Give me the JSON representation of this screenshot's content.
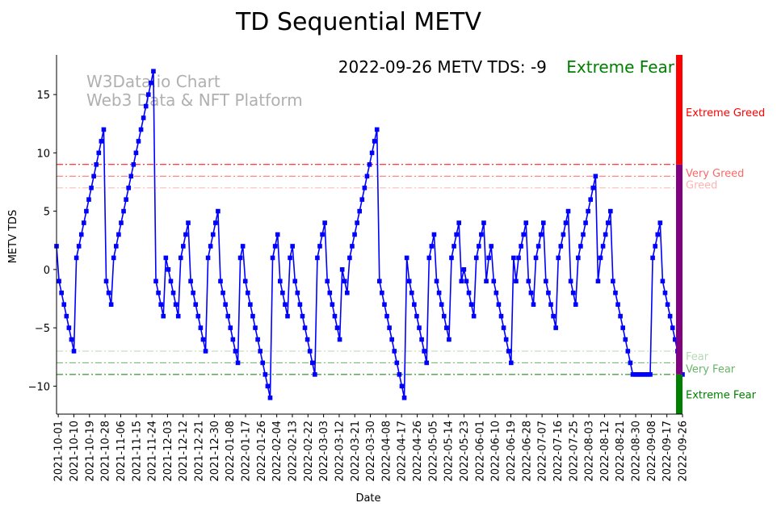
{
  "chart_data": {
    "type": "line",
    "title": "TD Sequential METV",
    "xlabel": "Date",
    "ylabel": "METV TDS",
    "ylim": [
      -12.4,
      18.4
    ],
    "yticks": [
      15,
      10,
      5,
      0,
      -5,
      -10
    ],
    "x_start": "2021-09-30",
    "x_end": "2022-09-26",
    "xticks": [
      "2021-10-01",
      "2021-10-10",
      "2021-10-19",
      "2021-10-28",
      "2021-11-06",
      "2021-11-15",
      "2021-11-24",
      "2021-12-03",
      "2021-12-12",
      "2021-12-21",
      "2021-12-30",
      "2022-01-08",
      "2022-01-17",
      "2022-01-26",
      "2022-02-04",
      "2022-02-13",
      "2022-02-22",
      "2022-03-03",
      "2022-03-12",
      "2022-03-21",
      "2022-03-30",
      "2022-04-08",
      "2022-04-17",
      "2022-04-26",
      "2022-05-05",
      "2022-05-14",
      "2022-05-23",
      "2022-06-01",
      "2022-06-10",
      "2022-06-19",
      "2022-06-28",
      "2022-07-07",
      "2022-07-16",
      "2022-07-25",
      "2022-08-03",
      "2022-08-12",
      "2022-08-21",
      "2022-08-30",
      "2022-09-08",
      "2022-09-17",
      "2022-09-26"
    ],
    "grid": false,
    "watermark": [
      "W3Data.io Chart",
      "Web3 Data & NFT Platform"
    ],
    "annotation": {
      "label": "2022-09-26 METV TDS: -9",
      "sentiment": "Extreme Fear",
      "sentiment_color": "#008000"
    },
    "series": [
      {
        "color": "#0000ff",
        "marker": "square",
        "values": [
          2,
          -1,
          -2,
          -3,
          -4,
          -5,
          -6,
          -7,
          1,
          2,
          3,
          4,
          5,
          6,
          7,
          8,
          9,
          10,
          11,
          12,
          -1,
          -2,
          -3,
          1,
          2,
          3,
          4,
          5,
          6,
          7,
          8,
          9,
          10,
          11,
          12,
          13,
          14,
          15,
          16,
          17,
          -1,
          -2,
          -3,
          -4,
          1,
          0,
          -1,
          -2,
          -3,
          -4,
          1,
          2,
          3,
          4,
          -1,
          -2,
          -3,
          -4,
          -5,
          -6,
          -7,
          1,
          2,
          3,
          4,
          5,
          -1,
          -2,
          -3,
          -4,
          -5,
          -6,
          -7,
          -8,
          1,
          2,
          -1,
          -2,
          -3,
          -4,
          -5,
          -6,
          -7,
          -8,
          -9,
          -10,
          -11,
          1,
          2,
          3,
          -1,
          -2,
          -3,
          -4,
          1,
          2,
          -1,
          -2,
          -3,
          -4,
          -5,
          -6,
          -7,
          -8,
          -9,
          1,
          2,
          3,
          4,
          -1,
          -2,
          -3,
          -4,
          -5,
          -6,
          0,
          -1,
          -2,
          1,
          2,
          3,
          4,
          5,
          6,
          7,
          8,
          9,
          10,
          11,
          12,
          -1,
          -2,
          -3,
          -4,
          -5,
          -6,
          -7,
          -8,
          -9,
          -10,
          -11,
          1,
          -1,
          -2,
          -3,
          -4,
          -5,
          -6,
          -7,
          -8,
          1,
          2,
          3,
          -1,
          -2,
          -3,
          -4,
          -5,
          -6,
          1,
          2,
          3,
          4,
          -1,
          0,
          -1,
          -2,
          -3,
          -4,
          1,
          2,
          3,
          4,
          -1,
          1,
          2,
          -1,
          -2,
          -3,
          -4,
          -5,
          -6,
          -7,
          -8,
          1,
          -1,
          1,
          2,
          3,
          4,
          -1,
          -2,
          -3,
          1,
          2,
          3,
          4,
          -1,
          -2,
          -3,
          -4,
          -5,
          1,
          2,
          3,
          4,
          5,
          -1,
          -2,
          -3,
          1,
          2,
          3,
          4,
          5,
          6,
          7,
          8,
          -1,
          1,
          2,
          3,
          4,
          5,
          -1,
          -2,
          -3,
          -4,
          -5,
          -6,
          -7,
          -8,
          -9,
          -9,
          -9,
          -9,
          -9,
          -9,
          -9,
          -9,
          1,
          2,
          3,
          4,
          -1,
          -2,
          -3,
          -4,
          -5,
          -6,
          -7,
          -8,
          -9
        ]
      }
    ],
    "thresholds": [
      {
        "value": 9,
        "color": "#ff0000",
        "opacity": 1.0
      },
      {
        "value": 8,
        "color": "#ff0000",
        "opacity": 0.6
      },
      {
        "value": 7,
        "color": "#ff0000",
        "opacity": 0.3
      },
      {
        "value": -7,
        "color": "#008000",
        "opacity": 0.3
      },
      {
        "value": -8,
        "color": "#008000",
        "opacity": 0.6
      },
      {
        "value": -9,
        "color": "#008000",
        "opacity": 1.0
      }
    ],
    "sentiment_bar": [
      {
        "from": 9,
        "to": 18.4,
        "color": "#ff0000"
      },
      {
        "from": -9,
        "to": 9,
        "color": "#800080"
      },
      {
        "from": -12.4,
        "to": -9,
        "color": "#008000"
      }
    ],
    "zone_labels": [
      {
        "text": "Extreme Greed",
        "y": 13.5,
        "color": "#ff0000",
        "opacity": 1.0
      },
      {
        "text": "Very Greed",
        "y": 8.3,
        "color": "#ff0000",
        "opacity": 0.6
      },
      {
        "text": "Greed",
        "y": 7.3,
        "color": "#ff0000",
        "opacity": 0.3
      },
      {
        "text": "Fear",
        "y": -7.4,
        "color": "#008000",
        "opacity": 0.3
      },
      {
        "text": "Very Fear",
        "y": -8.5,
        "color": "#008000",
        "opacity": 0.6
      },
      {
        "text": "Extreme Fear",
        "y": -10.7,
        "color": "#008000",
        "opacity": 1.0
      }
    ]
  }
}
